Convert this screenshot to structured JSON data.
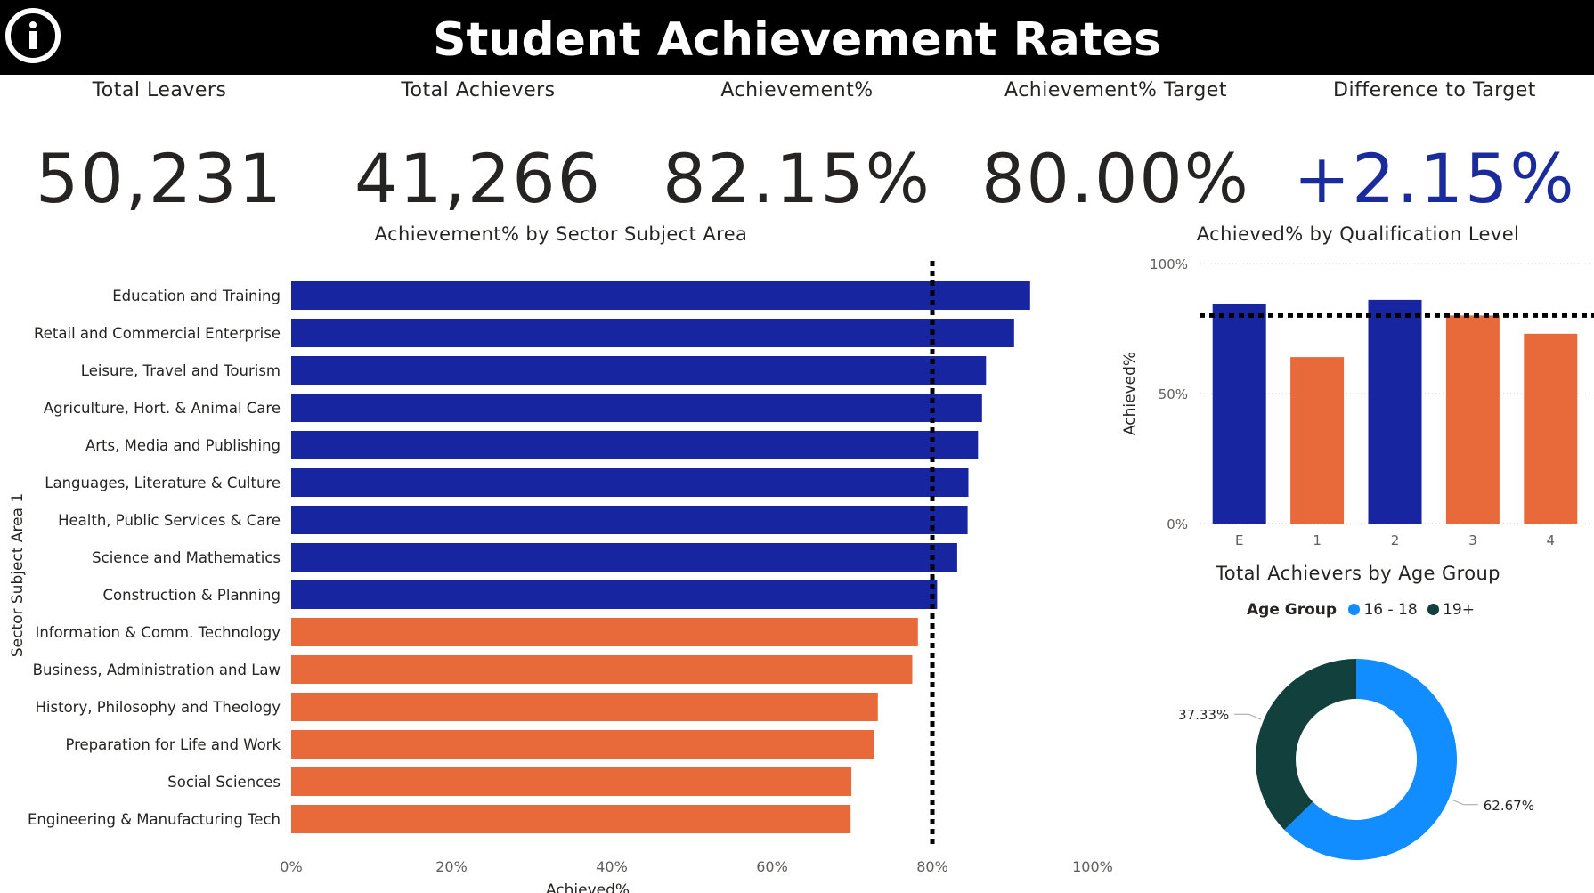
{
  "header": {
    "title": "Student Achievement Rates",
    "info_icon": "info-icon"
  },
  "kpis": [
    {
      "label": "Total Leavers",
      "value": "50,231"
    },
    {
      "label": "Total Achievers",
      "value": "41,266"
    },
    {
      "label": "Achievement%",
      "value": "82.15%"
    },
    {
      "label": "Achievement% Target",
      "value": "80.00%"
    },
    {
      "label": "Difference to Target",
      "value": "+2.15%"
    }
  ],
  "colors": {
    "above_target": "#1726a0",
    "below_target": "#e8693a",
    "youth": "#118dff",
    "adult": "#11403d",
    "accent": "#1a2b9c"
  },
  "chart_data": [
    {
      "type": "bar",
      "orientation": "horizontal",
      "title": "Achievement% by Sector Subject Area",
      "xlabel": "Achieved%",
      "ylabel": "Sector Subject Area 1",
      "xlim": [
        0,
        100
      ],
      "xticks": [
        "0%",
        "20%",
        "40%",
        "60%",
        "80%",
        "100%"
      ],
      "target": 80,
      "categories": [
        "Education and Training",
        "Retail and Commercial Enterprise",
        "Leisure, Travel and Tourism",
        "Agriculture, Hort. & Animal Care",
        "Arts, Media and Publishing",
        "Languages, Literature & Culture",
        "Health, Public Services & Care",
        "Science and Mathematics",
        "Construction & Planning",
        "Information & Comm. Technology",
        "Business, Administration and Law",
        "History, Philosophy and Theology",
        "Preparation for Life and Work",
        "Social Sciences",
        "Engineering & Manufacturing Tech"
      ],
      "values": [
        92.2,
        90.2,
        86.7,
        86.2,
        85.7,
        84.5,
        84.4,
        83.1,
        80.6,
        78.2,
        77.5,
        73.2,
        72.7,
        69.9,
        69.8
      ],
      "grid": false
    },
    {
      "type": "bar",
      "title": "Achieved% by Qualification Level",
      "xlabel": "",
      "ylabel": "Achieved%",
      "ylim": [
        0,
        100
      ],
      "yticks": [
        "0%",
        "50%",
        "100%"
      ],
      "target": 80,
      "categories": [
        "E",
        "1",
        "2",
        "3",
        "4"
      ],
      "values": [
        84.5,
        64.0,
        86.0,
        80.0,
        73.0
      ],
      "grid": true
    },
    {
      "type": "pie",
      "variant": "donut",
      "title": "Total Achievers by Age Group",
      "legend_title": "Age Group",
      "legend_position": "top",
      "labels": [
        "16 - 18",
        "19+"
      ],
      "values": [
        62.67,
        37.33
      ],
      "value_labels": [
        "62.67%",
        "37.33%"
      ]
    }
  ]
}
